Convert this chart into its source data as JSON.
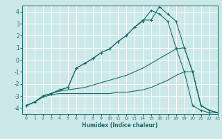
{
  "xlabel": "Humidex (Indice chaleur)",
  "ylabel": "",
  "xlim": [
    -0.5,
    23
  ],
  "ylim": [
    -4.5,
    4.5
  ],
  "xticks": [
    0,
    1,
    2,
    3,
    4,
    5,
    6,
    7,
    8,
    9,
    10,
    11,
    12,
    13,
    14,
    15,
    16,
    17,
    18,
    19,
    20,
    21,
    22,
    23
  ],
  "yticks": [
    -4,
    -3,
    -2,
    -1,
    0,
    1,
    2,
    3,
    4
  ],
  "bg_color": "#cce8e8",
  "line_color": "#1a6b6b",
  "grid_color": "#ffffff",
  "lines": [
    {
      "x": [
        0,
        1,
        2,
        3,
        4,
        5,
        6,
        7,
        8,
        9,
        10,
        11,
        12,
        13,
        14,
        15,
        16,
        17,
        18,
        19,
        20,
        21,
        22,
        23
      ],
      "y": [
        -3.8,
        -3.5,
        -3.0,
        -2.8,
        -2.5,
        -2.3,
        -0.7,
        -0.3,
        0.1,
        0.6,
        0.9,
        1.5,
        2.0,
        2.7,
        3.3,
        3.3,
        4.4,
        3.8,
        3.2,
        1.0,
        -1.0,
        -3.8,
        -4.2,
        -4.4
      ],
      "marker": true
    },
    {
      "x": [
        0,
        1,
        2,
        3,
        4,
        5,
        6,
        7,
        8,
        9,
        10,
        11,
        12,
        13,
        14,
        15,
        16,
        17,
        18,
        19,
        20,
        21,
        22,
        23
      ],
      "y": [
        -3.8,
        -3.5,
        -3.0,
        -2.8,
        -2.5,
        -2.3,
        -0.7,
        -0.3,
        0.1,
        0.6,
        0.9,
        1.5,
        2.0,
        2.7,
        3.2,
        4.1,
        3.8,
        3.2,
        1.0,
        -1.0,
        -3.8,
        -4.2,
        -4.4,
        -4.4
      ],
      "marker": true
    },
    {
      "x": [
        0,
        1,
        2,
        3,
        4,
        5,
        6,
        7,
        8,
        9,
        10,
        11,
        12,
        13,
        14,
        15,
        16,
        17,
        18,
        19,
        20,
        21,
        22,
        23
      ],
      "y": [
        -3.8,
        -3.5,
        -3.0,
        -2.8,
        -2.6,
        -2.5,
        -2.4,
        -2.3,
        -2.1,
        -1.9,
        -1.7,
        -1.5,
        -1.3,
        -1.0,
        -0.7,
        -0.3,
        0.1,
        0.5,
        0.9,
        1.0,
        -1.0,
        -3.8,
        -4.2,
        -4.4
      ],
      "marker": false
    },
    {
      "x": [
        0,
        1,
        2,
        3,
        4,
        5,
        6,
        7,
        8,
        9,
        10,
        11,
        12,
        13,
        14,
        15,
        16,
        17,
        18,
        19,
        20,
        21,
        22,
        23
      ],
      "y": [
        -3.8,
        -3.5,
        -3.1,
        -2.9,
        -2.8,
        -2.8,
        -2.8,
        -2.8,
        -2.8,
        -2.8,
        -2.8,
        -2.7,
        -2.7,
        -2.6,
        -2.5,
        -2.3,
        -2.0,
        -1.7,
        -1.3,
        -1.0,
        -1.0,
        -3.8,
        -4.2,
        -4.4
      ],
      "marker": false
    }
  ]
}
